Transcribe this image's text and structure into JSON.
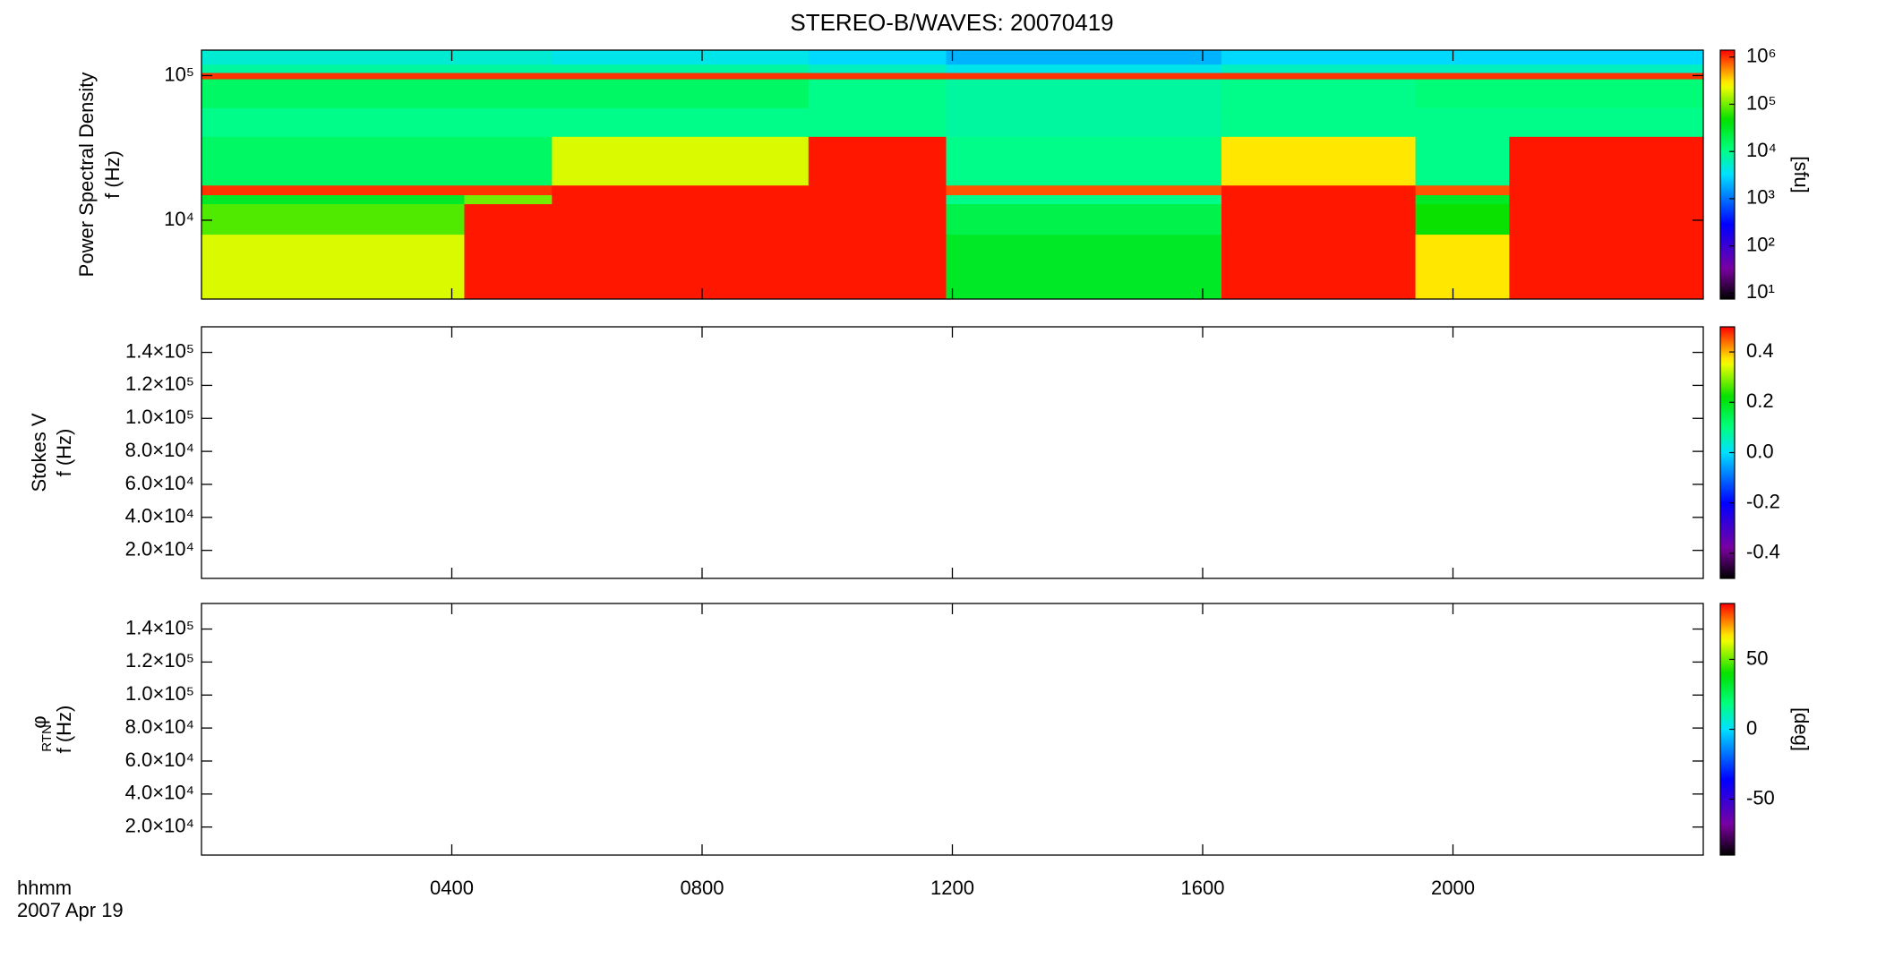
{
  "title": "STEREO-B/WAVES: 20070419",
  "x_axis": {
    "label": "hhmm",
    "date": "2007 Apr 19",
    "xlim": [
      0,
      24
    ],
    "xticks": [
      {
        "value": 4,
        "label": "0400"
      },
      {
        "value": 8,
        "label": "0800"
      },
      {
        "value": 12,
        "label": "1200"
      },
      {
        "value": 16,
        "label": "1600"
      },
      {
        "value": 20,
        "label": "2000"
      }
    ]
  },
  "chart_data": [
    {
      "type": "heatmap",
      "ylabel": [
        "Power Spectral Density",
        "f (Hz)"
      ],
      "log_y": true,
      "ylim": [
        2850,
        150000
      ],
      "yticks": [
        {
          "value": 10000,
          "label": "10⁴"
        },
        {
          "value": 100000,
          "label": "10⁵"
        }
      ],
      "x_edges": [
        0,
        4.2,
        5.6,
        9.7,
        11.9,
        16.3,
        19.4,
        20.9,
        24
      ],
      "y_edges": [
        2850,
        8000,
        13000,
        15000,
        17500,
        38000,
        60000,
        95000,
        105000,
        120000,
        150000
      ],
      "z": [
        [
          200000,
          1200000,
          1200000,
          1200000,
          30000,
          1200000,
          300000,
          1200000
        ],
        [
          80000,
          1200000,
          1200000,
          1200000,
          20000,
          1200000,
          50000,
          1200000
        ],
        [
          30000,
          100000,
          1200000,
          1200000,
          10000,
          1200000,
          30000,
          1200000
        ],
        [
          1000000,
          1000000,
          1200000,
          1200000,
          800000,
          1200000,
          800000,
          1200000
        ],
        [
          15000,
          15000,
          200000,
          1200000,
          10000,
          300000,
          10000,
          1200000
        ],
        [
          10000,
          10000,
          10000,
          10000,
          8000,
          10000,
          10000,
          10000
        ],
        [
          15000,
          15000,
          15000,
          10000,
          8000,
          10000,
          12000,
          12000
        ],
        [
          1000000,
          1000000,
          1000000,
          1000000,
          1000000,
          1000000,
          1000000,
          1000000
        ],
        [
          8000,
          8000,
          8000,
          6000,
          4000,
          6000,
          6000,
          6000
        ],
        [
          5000,
          5000,
          4000,
          3000,
          2000,
          3000,
          3000,
          3000
        ]
      ],
      "colorbar": {
        "label": "[sfu]",
        "log": true,
        "zlim": [
          7.5,
          1400000
        ],
        "zticks": [
          {
            "value": 10,
            "label": "10¹"
          },
          {
            "value": 100,
            "label": "10²"
          },
          {
            "value": 1000,
            "label": "10³"
          },
          {
            "value": 10000,
            "label": "10⁴"
          },
          {
            "value": 100000,
            "label": "10⁵"
          },
          {
            "value": 1000000,
            "label": "10⁶"
          }
        ]
      }
    },
    {
      "type": "heatmap",
      "ylabel": [
        "Stokes V",
        "f (Hz)"
      ],
      "log_y": false,
      "ylim": [
        3000,
        155500
      ],
      "yticks": [
        {
          "value": 20000,
          "label": "2.0×10⁴"
        },
        {
          "value": 40000,
          "label": "4.0×10⁴"
        },
        {
          "value": 60000,
          "label": "6.0×10⁴"
        },
        {
          "value": 80000,
          "label": "8.0×10⁴"
        },
        {
          "value": 100000,
          "label": "1.0×10⁵"
        },
        {
          "value": 120000,
          "label": "1.2×10⁵"
        },
        {
          "value": 140000,
          "label": "1.4×10⁵"
        }
      ],
      "colorbar": {
        "log": false,
        "zlim": [
          -0.5,
          0.5
        ],
        "zticks": [
          -0.4,
          -0.2,
          {
            "value": 0,
            "label": "0.0"
          },
          0.2,
          0.4
        ]
      }
    },
    {
      "type": "heatmap",
      "ylabel": [
        "φ",
        "f (Hz)"
      ],
      "ylabel_subscript": "RTN",
      "log_y": false,
      "ylim": [
        3000,
        155500
      ],
      "yticks": [
        {
          "value": 20000,
          "label": "2.0×10⁴"
        },
        {
          "value": 40000,
          "label": "4.0×10⁴"
        },
        {
          "value": 60000,
          "label": "6.0×10⁴"
        },
        {
          "value": 80000,
          "label": "8.0×10⁴"
        },
        {
          "value": 100000,
          "label": "1.0×10⁵"
        },
        {
          "value": 120000,
          "label": "1.2×10⁵"
        },
        {
          "value": 140000,
          "label": "1.4×10⁵"
        }
      ],
      "colorbar": {
        "label": "[deg]",
        "log": false,
        "zlim": [
          -90,
          90
        ],
        "zticks": [
          -50,
          0,
          50
        ]
      }
    }
  ]
}
